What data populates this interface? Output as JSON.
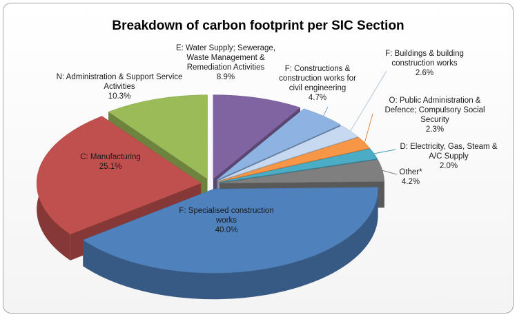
{
  "chart_data": {
    "type": "pie",
    "title": "Breakdown of carbon footprint per SIC Section",
    "categories": [
      "E: Water Supply; Sewerage, Waste Management & Remediation Activities",
      "F: Constructions & construction works for civil engineering",
      "F: Buildings & building construction works",
      "O: Public Administration & Defence; Compulsory Social Security",
      "D: Electricity, Gas, Steam & A/C Supply",
      "Other*",
      "F: Specialised construction works",
      "C: Manufacturing",
      "N: Administration & Support Service Activities"
    ],
    "values": [
      8.9,
      4.7,
      2.6,
      2.3,
      2.0,
      4.2,
      40.0,
      25.1,
      10.3
    ],
    "value_labels": [
      "8.9%",
      "4.7%",
      "2.6%",
      "2.3%",
      "2.0%",
      "4.2%",
      "40.0%",
      "25.1%",
      "10.3%"
    ],
    "colors": [
      "#8064a2",
      "#8db3e2",
      "#c6d9f1",
      "#f79646",
      "#4bacc6",
      "#7f7f7f",
      "#4f81bd",
      "#c0504d",
      "#9bbb59"
    ]
  }
}
